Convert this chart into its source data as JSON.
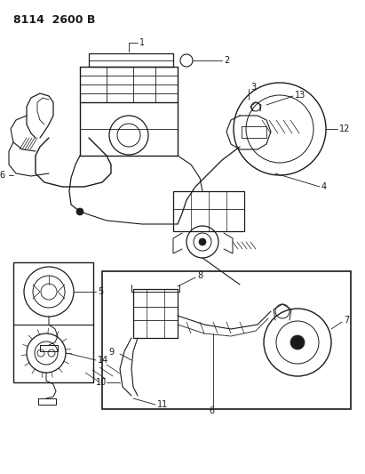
{
  "title": "8114  2600 B",
  "background_color": "#ffffff",
  "line_color": "#1a1a1a",
  "fig_width": 4.11,
  "fig_height": 5.33,
  "dpi": 100,
  "title_fontsize": 8.5,
  "label_fontsize": 6.5
}
